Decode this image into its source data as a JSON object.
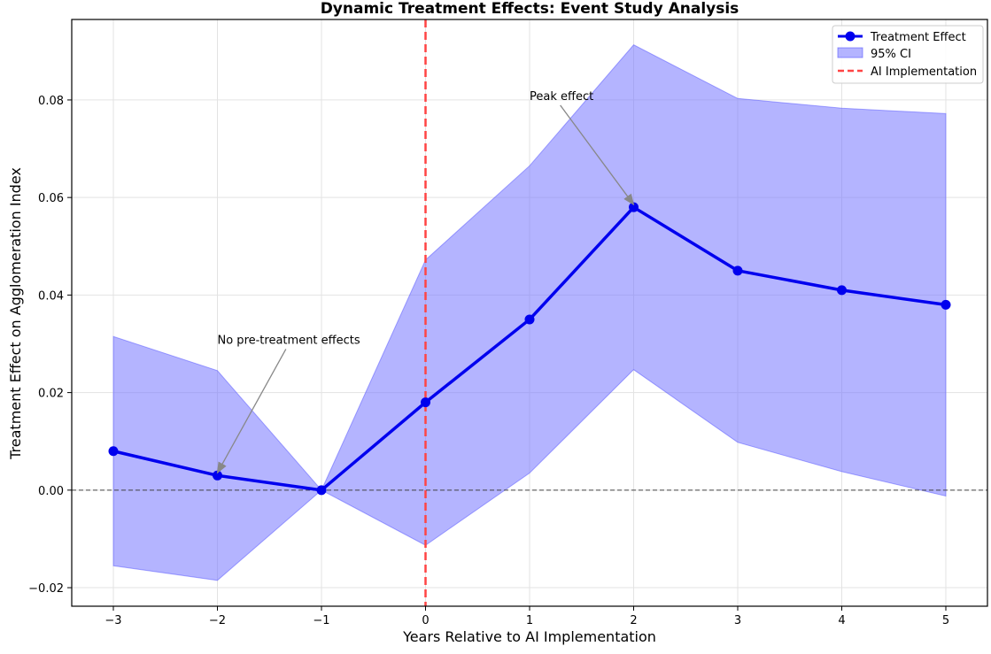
{
  "chart_data": {
    "type": "line",
    "title": "Dynamic Treatment Effects: Event Study Analysis",
    "xlabel": "Years Relative to AI Implementation",
    "ylabel": "Treatment Effect on Agglomeration Index",
    "xlim": [
      -3.4,
      5.4
    ],
    "ylim": [
      -0.0238,
      0.0965
    ],
    "x_ticks": [
      -3,
      -2,
      -1,
      0,
      1,
      2,
      3,
      4,
      5
    ],
    "x_tick_labels": [
      "−3",
      "−2",
      "−1",
      "0",
      "1",
      "2",
      "3",
      "4",
      "5"
    ],
    "y_ticks": [
      -0.02,
      0.0,
      0.02,
      0.04,
      0.06,
      0.08
    ],
    "y_tick_labels": [
      "−0.02",
      "0.00",
      "0.02",
      "0.04",
      "0.06",
      "0.08"
    ],
    "grid": true,
    "legend_position": "top-right",
    "series": [
      {
        "name": "Treatment Effect",
        "color": "#0000ee",
        "x": [
          -3,
          -2,
          -1,
          0,
          1,
          2,
          3,
          4,
          5
        ],
        "values": [
          0.008,
          0.003,
          0.0,
          0.018,
          0.035,
          0.058,
          0.045,
          0.041,
          0.038
        ]
      }
    ],
    "confidence_band": {
      "name": "95% CI",
      "color": "#7777ff",
      "x": [
        -3,
        -2,
        -1,
        0,
        1,
        2,
        3,
        4,
        5
      ],
      "lower": [
        -0.0155,
        -0.0185,
        0.0,
        -0.0113,
        0.0035,
        0.0247,
        0.0098,
        0.0038,
        -0.0012
      ],
      "upper": [
        0.0315,
        0.0245,
        0.0,
        0.0472,
        0.0665,
        0.0913,
        0.0803,
        0.0783,
        0.0772
      ]
    },
    "reference_lines": [
      {
        "name": "AI Implementation",
        "orientation": "vertical",
        "value": 0,
        "color": "#ff4444",
        "style": "dashed"
      },
      {
        "orientation": "horizontal",
        "value": 0,
        "color": "#444444",
        "style": "dashed"
      }
    ],
    "annotations": [
      {
        "text": "No pre-treatment effects",
        "target_x": -2,
        "target_y": 0.003,
        "text_x": -2,
        "text_y": 0.03
      },
      {
        "text": "Peak effect",
        "target_x": 2,
        "target_y": 0.058,
        "text_x": 1,
        "text_y": 0.08
      }
    ]
  }
}
